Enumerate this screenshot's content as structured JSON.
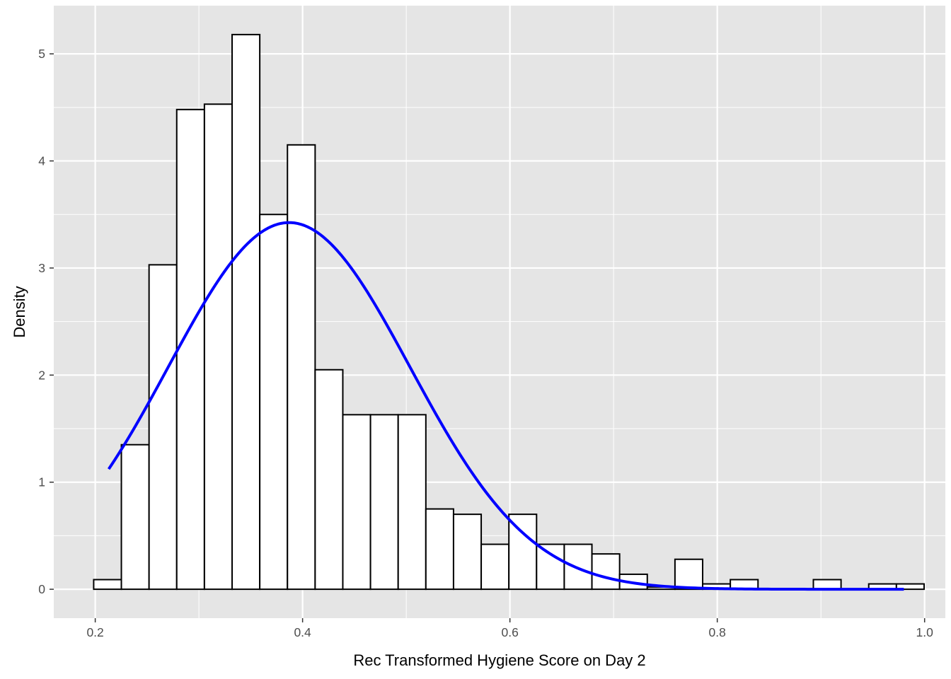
{
  "chart_data": {
    "type": "bar",
    "subtype": "histogram-with-density-curve",
    "xlabel": "Rec Transformed Hygiene Score on Day 2",
    "ylabel": "Density",
    "xlim": [
      0.16,
      1.02
    ],
    "ylim": [
      -0.27,
      5.45
    ],
    "x_ticks": [
      0.2,
      0.4,
      0.6,
      0.8,
      1.0
    ],
    "x_tick_labels": [
      "0.2",
      "0.4",
      "0.6",
      "0.8",
      "1.0"
    ],
    "y_ticks": [
      0,
      1,
      2,
      3,
      4,
      5
    ],
    "y_tick_labels": [
      "0",
      "1",
      "2",
      "3",
      "4",
      "5"
    ],
    "grid": true,
    "legend": "none",
    "panel_background": "#e5e5e5",
    "grid_color": "#ffffff",
    "bar_fill": "#ffffff",
    "bar_outline": "#000000",
    "curve_color": "#0000ff",
    "bin_width": 0.0267,
    "bins": [
      {
        "x0": 0.1985,
        "x1": 0.2252,
        "density": 0.09
      },
      {
        "x0": 0.2252,
        "x1": 0.2519,
        "density": 1.35
      },
      {
        "x0": 0.2519,
        "x1": 0.2786,
        "density": 3.03
      },
      {
        "x0": 0.2786,
        "x1": 0.3053,
        "density": 4.48
      },
      {
        "x0": 0.3053,
        "x1": 0.332,
        "density": 4.53
      },
      {
        "x0": 0.332,
        "x1": 0.3587,
        "density": 5.18
      },
      {
        "x0": 0.3587,
        "x1": 0.3854,
        "density": 3.5
      },
      {
        "x0": 0.3854,
        "x1": 0.4121,
        "density": 4.15
      },
      {
        "x0": 0.4121,
        "x1": 0.4388,
        "density": 2.05
      },
      {
        "x0": 0.4388,
        "x1": 0.4655,
        "density": 1.63
      },
      {
        "x0": 0.4655,
        "x1": 0.4922,
        "density": 1.63
      },
      {
        "x0": 0.4922,
        "x1": 0.5189,
        "density": 1.63
      },
      {
        "x0": 0.5189,
        "x1": 0.5456,
        "density": 0.75
      },
      {
        "x0": 0.5456,
        "x1": 0.5723,
        "density": 0.7
      },
      {
        "x0": 0.5723,
        "x1": 0.599,
        "density": 0.42
      },
      {
        "x0": 0.599,
        "x1": 0.6257,
        "density": 0.7
      },
      {
        "x0": 0.6257,
        "x1": 0.6524,
        "density": 0.42
      },
      {
        "x0": 0.6524,
        "x1": 0.6791,
        "density": 0.42
      },
      {
        "x0": 0.6791,
        "x1": 0.7058,
        "density": 0.33
      },
      {
        "x0": 0.7058,
        "x1": 0.7325,
        "density": 0.14
      },
      {
        "x0": 0.7325,
        "x1": 0.7592,
        "density": 0.02
      },
      {
        "x0": 0.7592,
        "x1": 0.7859,
        "density": 0.28
      },
      {
        "x0": 0.7859,
        "x1": 0.8126,
        "density": 0.05
      },
      {
        "x0": 0.8126,
        "x1": 0.8393,
        "density": 0.09
      },
      {
        "x0": 0.8393,
        "x1": 0.866,
        "density": 0.0
      },
      {
        "x0": 0.866,
        "x1": 0.8927,
        "density": 0.0
      },
      {
        "x0": 0.8927,
        "x1": 0.9194,
        "density": 0.09
      },
      {
        "x0": 0.9194,
        "x1": 0.9461,
        "density": 0.0
      },
      {
        "x0": 0.9461,
        "x1": 0.9728,
        "density": 0.05
      },
      {
        "x0": 0.9728,
        "x1": 0.9995,
        "density": 0.05
      }
    ],
    "normal_curve": {
      "mean": 0.387,
      "sd": 0.1165,
      "x_range": [
        0.213,
        0.98
      ]
    }
  }
}
